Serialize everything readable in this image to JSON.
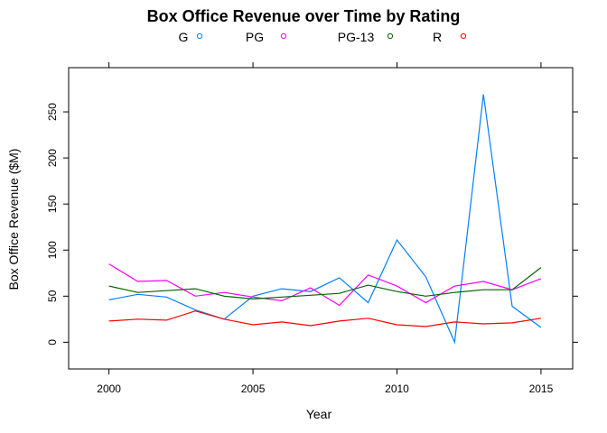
{
  "chart_data": {
    "type": "line",
    "title": "Box Office Revenue over Time by Rating",
    "xlabel": "Year",
    "ylabel": "Box Office Revenue ($M)",
    "xlim": [
      1998.6,
      2016.1
    ],
    "ylim": [
      -29,
      298
    ],
    "x_ticks": [
      2000,
      2005,
      2010,
      2015
    ],
    "y_ticks": [
      0,
      50,
      100,
      150,
      200,
      250
    ],
    "grid": false,
    "legend_position": "top",
    "x": [
      2000,
      2001,
      2002,
      2003,
      2004,
      2005,
      2006,
      2007,
      2008,
      2009,
      2010,
      2011,
      2012,
      2013,
      2014,
      2015
    ],
    "series": [
      {
        "name": "G",
        "color": "#0080ff",
        "values": [
          46,
          52,
          49,
          35,
          25,
          50,
          58,
          55,
          70,
          43,
          111,
          71,
          0,
          269,
          39,
          16
        ]
      },
      {
        "name": "PG",
        "color": "#ff00ff",
        "values": [
          85,
          66,
          67,
          50,
          54,
          49,
          45,
          59,
          40,
          73,
          61,
          43,
          61,
          66,
          57,
          69
        ]
      },
      {
        "name": "PG-13",
        "color": "#006400",
        "values": [
          61,
          54,
          56,
          58,
          50,
          47,
          49,
          51,
          53,
          62,
          55,
          50,
          54,
          57,
          57,
          81
        ]
      },
      {
        "name": "R",
        "color": "#ff0000",
        "values": [
          23,
          25,
          24,
          34,
          25,
          19,
          22,
          18,
          23,
          26,
          19,
          17,
          22,
          20,
          21,
          26
        ]
      }
    ]
  }
}
